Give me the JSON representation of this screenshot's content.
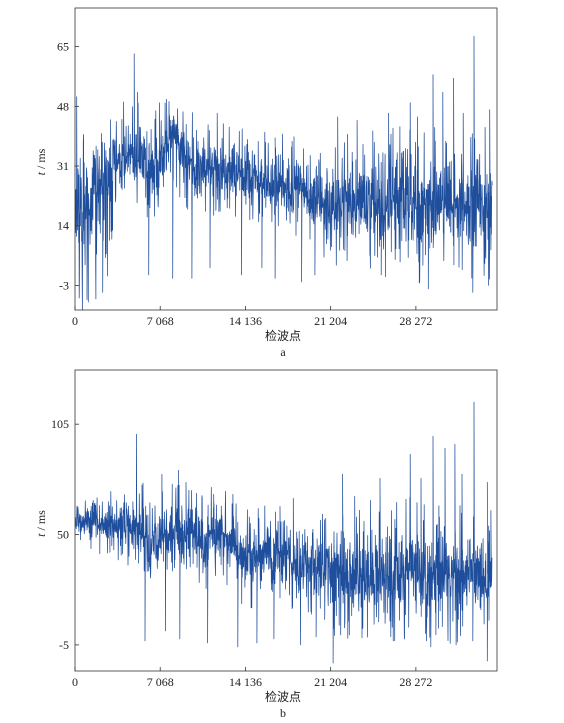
{
  "chart_data": [
    {
      "type": "line",
      "panel_label": "a",
      "xlabel": "检波点",
      "ylabel": {
        "var": "t",
        "unit": " / ms"
      },
      "x_ticks": [
        0,
        7068,
        14136,
        21204,
        28272
      ],
      "x_tick_labels": [
        "0",
        "7 068",
        "14 136",
        "21 204",
        "28 272"
      ],
      "xlim": [
        0,
        35000
      ],
      "y_ticks": [
        -3,
        14,
        31,
        48,
        65
      ],
      "y_tick_labels": [
        "-3",
        "14",
        "31",
        "48",
        "65"
      ],
      "ylim": [
        -10,
        76
      ],
      "series": [
        {
          "color": "#1f4e9c",
          "baseline": [
            [
              0,
              20
            ],
            [
              1500,
              20
            ],
            [
              2800,
              25
            ],
            [
              3200,
              32
            ],
            [
              4500,
              36
            ],
            [
              5500,
              33
            ],
            [
              6500,
              30
            ],
            [
              7600,
              35
            ],
            [
              8200,
              40
            ],
            [
              9200,
              34
            ],
            [
              10000,
              28
            ],
            [
              11300,
              31
            ],
            [
              12600,
              30
            ],
            [
              14000,
              27
            ],
            [
              16000,
              26
            ],
            [
              17600,
              26
            ],
            [
              18500,
              25
            ],
            [
              20000,
              22
            ],
            [
              21500,
              20
            ],
            [
              24000,
              20
            ],
            [
              27000,
              20
            ],
            [
              30000,
              20
            ],
            [
              33000,
              19
            ],
            [
              34500,
              19
            ]
          ],
          "spread": [
            [
              0,
              16
            ],
            [
              3000,
              12
            ],
            [
              3200,
              7
            ],
            [
              6000,
              8
            ],
            [
              8000,
              7
            ],
            [
              10000,
              8
            ],
            [
              12500,
              6
            ],
            [
              13000,
              6
            ],
            [
              14000,
              7
            ],
            [
              20000,
              7
            ],
            [
              22000,
              9
            ],
            [
              28000,
              11
            ],
            [
              34500,
              10
            ]
          ],
          "dips": [
            [
              1000,
              -7
            ],
            [
              2300,
              -5
            ],
            [
              6100,
              0
            ],
            [
              8100,
              -1
            ],
            [
              9700,
              -1
            ],
            [
              11200,
              2
            ],
            [
              13800,
              0
            ],
            [
              15500,
              2
            ],
            [
              16600,
              -1
            ],
            [
              18800,
              -2
            ],
            [
              19900,
              0
            ],
            [
              25400,
              0
            ],
            [
              29300,
              -4
            ],
            [
              33000,
              -5
            ],
            [
              34300,
              -3
            ]
          ],
          "spikes": [
            [
              4900,
              63
            ],
            [
              5200,
              52
            ],
            [
              7000,
              49
            ],
            [
              7600,
              50
            ],
            [
              10200,
              38
            ],
            [
              11800,
              46
            ],
            [
              15200,
              38
            ],
            [
              16600,
              39
            ],
            [
              18000,
              38
            ],
            [
              19500,
              34
            ],
            [
              21800,
              45
            ],
            [
              22600,
              40
            ],
            [
              23400,
              44
            ],
            [
              24700,
              41
            ],
            [
              26000,
              46
            ],
            [
              27800,
              49
            ],
            [
              28400,
              45
            ],
            [
              29700,
              57
            ],
            [
              30500,
              52
            ],
            [
              31400,
              56
            ],
            [
              32200,
              46
            ],
            [
              33100,
              68
            ],
            [
              34000,
              42
            ],
            [
              34400,
              47
            ]
          ]
        }
      ]
    },
    {
      "type": "line",
      "panel_label": "b",
      "xlabel": "检波点",
      "ylabel": {
        "var": "t",
        "unit": " / ms"
      },
      "x_ticks": [
        0,
        7068,
        14136,
        21204,
        28272
      ],
      "x_tick_labels": [
        "0",
        "7 068",
        "14 136",
        "21 204",
        "28 272"
      ],
      "xlim": [
        0,
        35000
      ],
      "y_ticks": [
        -5,
        50,
        105
      ],
      "y_tick_labels": [
        "-5",
        "50",
        "105"
      ],
      "ylim": [
        -18,
        132
      ],
      "series": [
        {
          "color": "#1f4e9c",
          "baseline": [
            [
              0,
              57
            ],
            [
              2000,
              56
            ],
            [
              3500,
              55
            ],
            [
              4500,
              55
            ],
            [
              5500,
              53
            ],
            [
              6500,
              46
            ],
            [
              7500,
              47
            ],
            [
              8500,
              52
            ],
            [
              9500,
              50
            ],
            [
              10500,
              45
            ],
            [
              11500,
              50
            ],
            [
              12500,
              50
            ],
            [
              13500,
              40
            ],
            [
              15000,
              38
            ],
            [
              16000,
              40
            ],
            [
              17500,
              38
            ],
            [
              19000,
              35
            ],
            [
              20500,
              33
            ],
            [
              22000,
              30
            ],
            [
              24000,
              30
            ],
            [
              26000,
              30
            ],
            [
              28000,
              32
            ],
            [
              30000,
              30
            ],
            [
              32000,
              30
            ],
            [
              34500,
              30
            ]
          ],
          "spread": [
            [
              0,
              7
            ],
            [
              3000,
              8
            ],
            [
              6000,
              12
            ],
            [
              8000,
              12
            ],
            [
              12000,
              12
            ],
            [
              14000,
              12
            ],
            [
              18000,
              12
            ],
            [
              20000,
              12
            ],
            [
              22000,
              16
            ],
            [
              26000,
              18
            ],
            [
              30000,
              17
            ],
            [
              34500,
              16
            ]
          ],
          "dips": [
            [
              5800,
              -3
            ],
            [
              7500,
              2
            ],
            [
              8700,
              -2
            ],
            [
              11000,
              -4
            ],
            [
              13500,
              -6
            ],
            [
              15100,
              -4
            ],
            [
              16500,
              -2
            ],
            [
              18700,
              -5
            ],
            [
              20000,
              -1
            ],
            [
              21400,
              -14
            ],
            [
              26400,
              -3
            ],
            [
              29500,
              -6
            ],
            [
              31600,
              -5
            ],
            [
              33000,
              -3
            ],
            [
              34200,
              -13
            ]
          ],
          "spikes": [
            [
              5100,
              100
            ],
            [
              7200,
              80
            ],
            [
              8600,
              82
            ],
            [
              9200,
              76
            ],
            [
              10100,
              62
            ],
            [
              11500,
              70
            ],
            [
              13100,
              70
            ],
            [
              15200,
              63
            ],
            [
              17000,
              64
            ],
            [
              18100,
              68
            ],
            [
              20800,
              58
            ],
            [
              22200,
              80
            ],
            [
              23200,
              69
            ],
            [
              24500,
              67
            ],
            [
              25300,
              78
            ],
            [
              27800,
              90
            ],
            [
              28700,
              78
            ],
            [
              29700,
              99
            ],
            [
              30700,
              93
            ],
            [
              31500,
              95
            ],
            [
              32100,
              80
            ],
            [
              33100,
              116
            ],
            [
              34200,
              76
            ],
            [
              34500,
              62
            ]
          ]
        }
      ]
    }
  ]
}
